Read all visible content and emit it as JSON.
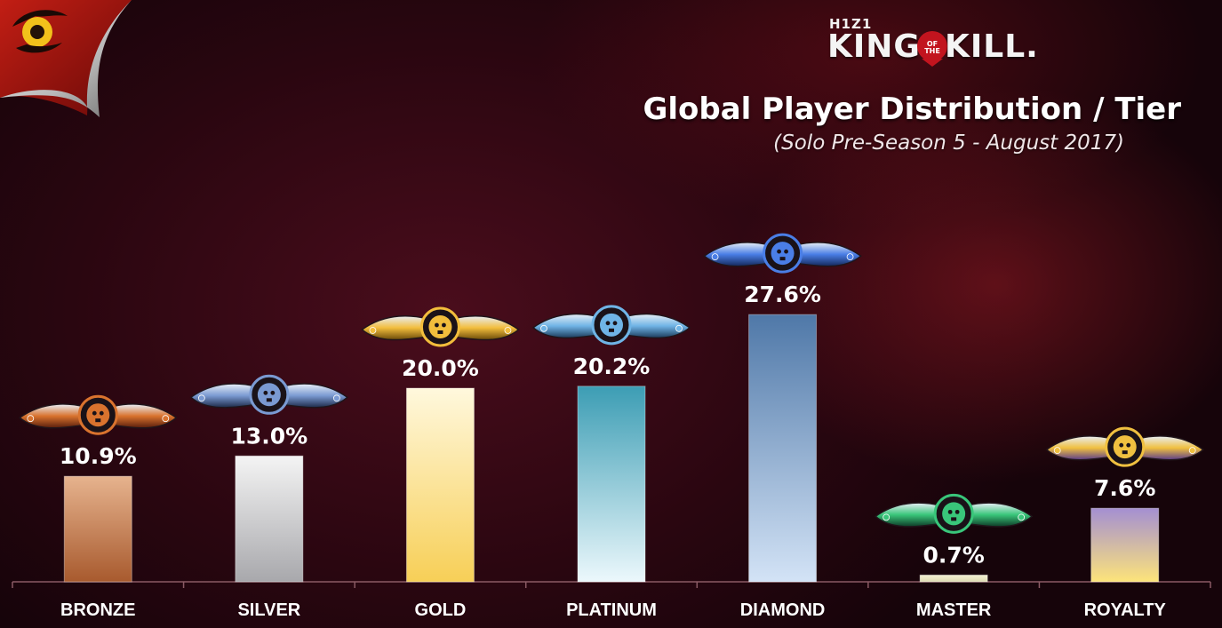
{
  "branding": {
    "small_text": "H1Z1",
    "word_left": "KING",
    "word_middle": "OF THE",
    "word_right": "KILL."
  },
  "chart_data": {
    "type": "bar",
    "title": "Global Player Distribution / Tier",
    "subtitle": "(Solo Pre-Season 5 - August 2017)",
    "xlabel": "",
    "ylabel": "",
    "ylim": [
      0,
      30
    ],
    "unit": "%",
    "grid": false,
    "legend": "none",
    "categories": [
      "BRONZE",
      "SILVER",
      "GOLD",
      "PLATINUM",
      "DIAMOND",
      "MASTER",
      "ROYALTY"
    ],
    "values": [
      10.9,
      13.0,
      20.0,
      20.2,
      27.6,
      0.7,
      7.6
    ],
    "data_labels": [
      "10.9%",
      "13.0%",
      "20.0%",
      "20.2%",
      "27.6%",
      "0.7%",
      "7.6%"
    ],
    "bar_gradients": [
      [
        "#e6b38e",
        "#a85a2e"
      ],
      [
        "#f4f4f4",
        "#a8a8ac"
      ],
      [
        "#fff8dd",
        "#f7cf57"
      ],
      [
        "#3c9db4",
        "#ecf8fc"
      ],
      [
        "#4f78a8",
        "#d3e3f6"
      ],
      [
        "#f3f0d2",
        "#dedbb3"
      ],
      [
        "#a48fd2",
        "#fde47a"
      ]
    ],
    "badge_icons": [
      "bronze-tier-badge-icon",
      "silver-tier-badge-icon",
      "gold-tier-badge-icon",
      "platinum-tier-badge-icon",
      "diamond-tier-badge-icon",
      "master-tier-badge-icon",
      "royalty-tier-badge-icon"
    ],
    "badge_colors": [
      [
        "#d9732e",
        "#5a1e0c"
      ],
      [
        "#7a9ad2",
        "#1c2a48"
      ],
      [
        "#f2bd3c",
        "#6a4a08"
      ],
      [
        "#6fb4e6",
        "#1c3c5c"
      ],
      [
        "#4a7ee6",
        "#14285a"
      ],
      [
        "#39c67a",
        "#0e3a26"
      ],
      [
        "#f0c040",
        "#5a3c8a"
      ]
    ]
  }
}
